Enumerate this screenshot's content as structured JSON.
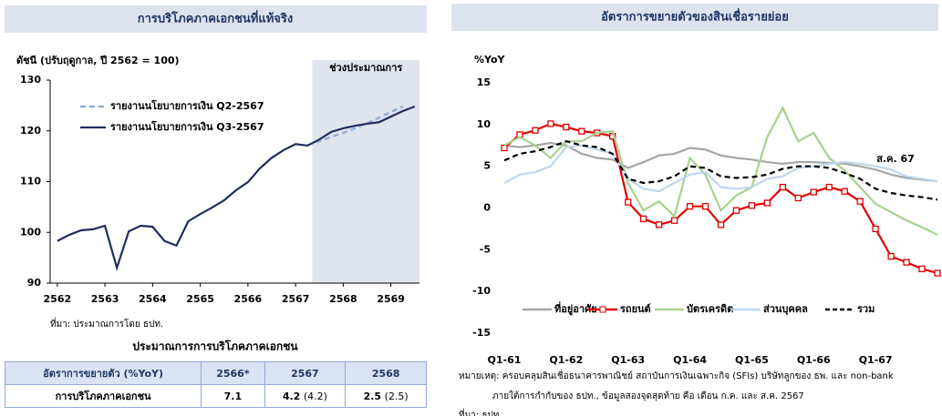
{
  "chart_data": [
    {
      "type": "line",
      "title": "การบริโภคภาคเอกชนที่แท้จริง",
      "y_label": "ดัชนี (ปรับฤดูกาล, ปี 2562 = 100)",
      "source": "ที่มา: ประมาณการโดย ธปท.",
      "x": [
        2562,
        2562.25,
        2562.5,
        2562.75,
        2563,
        2563.25,
        2563.5,
        2563.75,
        2564,
        2564.25,
        2564.5,
        2564.75,
        2565,
        2565.25,
        2565.5,
        2565.75,
        2566,
        2566.25,
        2566.5,
        2566.75,
        2567,
        2567.25,
        2567.5,
        2567.75,
        2568,
        2568.25,
        2568.5,
        2568.75,
        2569,
        2569.25,
        2569.5
      ],
      "xlim": [
        2561.85,
        2569.6
      ],
      "xticks": [
        2562,
        2563,
        2564,
        2565,
        2566,
        2567,
        2568,
        2569
      ],
      "ylim": [
        90,
        130
      ],
      "yticks": [
        90,
        100,
        110,
        120,
        130
      ],
      "shade": {
        "label": "ช่วงประมาณการ",
        "from": 2567.35,
        "to": 2569.6,
        "color": "#dfe4ee"
      },
      "legend": "upper left",
      "series": [
        {
          "name": "รายงานนโยบายการเงิน Q2-2567",
          "color": "#8eaadb",
          "dash": true,
          "values": [
            null,
            null,
            null,
            null,
            null,
            null,
            null,
            null,
            null,
            null,
            null,
            null,
            null,
            null,
            null,
            null,
            null,
            null,
            null,
            null,
            null,
            117.2,
            118.0,
            118.8,
            119.6,
            120.5,
            121.5,
            122.6,
            123.7,
            124.8,
            null
          ]
        },
        {
          "name": "รายงานนโยบายการเงิน Q3-2567",
          "color": "#1f2d5c",
          "dash": false,
          "values": [
            98.3,
            99.5,
            100.4,
            100.6,
            101.3,
            93.0,
            100.2,
            101.3,
            101.1,
            98.3,
            97.4,
            102.2,
            103.6,
            104.9,
            106.3,
            108.3,
            109.9,
            112.6,
            114.7,
            116.2,
            117.4,
            117.1,
            118.3,
            119.8,
            120.5,
            121.0,
            121.4,
            121.7,
            122.8,
            123.9,
            124.8
          ]
        }
      ]
    },
    {
      "type": "line",
      "title": "อัตราการขยายตัวของสินเชื่อรายย่อย",
      "y_label": "%YoY",
      "annotation": "ส.ค. 67",
      "categories": [
        "Q1-61",
        null,
        null,
        null,
        "Q1-62",
        null,
        null,
        null,
        "Q1-63",
        null,
        null,
        null,
        "Q1-64",
        null,
        null,
        null,
        "Q1-65",
        null,
        null,
        null,
        "Q1-66",
        null,
        null,
        null,
        "Q1-67",
        null,
        null,
        null,
        null
      ],
      "ylim": [
        -15,
        15
      ],
      "yticks": [
        -15,
        -10,
        -5,
        0,
        5,
        10,
        15
      ],
      "legend": "lower center",
      "series": [
        {
          "name": "ที่อยู่อาศัย",
          "color": "#a6a6a6",
          "dash": false,
          "values": [
            7.5,
            7.3,
            7.5,
            7.8,
            7.5,
            6.5,
            6.0,
            5.8,
            4.8,
            5.5,
            6.3,
            6.5,
            7.2,
            7.0,
            6.3,
            6.0,
            5.8,
            5.5,
            5.3,
            5.5,
            5.5,
            5.4,
            5.3,
            5.0,
            4.6,
            4.0,
            3.6,
            3.4,
            3.2
          ]
        },
        {
          "name": "รถยนต์",
          "color": "#e00000",
          "dash": false,
          "marker": "square",
          "values": [
            7.2,
            8.8,
            9.3,
            10.1,
            9.7,
            9.2,
            9.0,
            8.6,
            0.7,
            -1.3,
            -2.0,
            -1.5,
            0.2,
            0.2,
            -2.0,
            -0.3,
            0.3,
            0.6,
            2.5,
            1.2,
            1.9,
            2.5,
            2.0,
            0.8,
            -2.5,
            -5.8,
            -6.5,
            -7.3,
            -7.8
          ]
        },
        {
          "name": "บัตรเครดิต",
          "color": "#a9d18e",
          "dash": false,
          "values": [
            7.5,
            8.5,
            7.5,
            6.0,
            8.0,
            8.0,
            9.0,
            9.2,
            3.0,
            -0.3,
            0.8,
            -1.0,
            6.0,
            4.0,
            -0.3,
            1.5,
            2.5,
            8.5,
            12.0,
            8.0,
            9.0,
            6.0,
            4.5,
            2.5,
            0.5,
            -0.5,
            -1.5,
            -2.3,
            -3.2
          ]
        },
        {
          "name": "ส่วนบุคคล",
          "color": "#bdd7ee",
          "dash": false,
          "values": [
            3.0,
            4.0,
            4.3,
            5.0,
            7.3,
            7.5,
            7.0,
            6.5,
            3.5,
            2.3,
            2.0,
            3.0,
            4.0,
            4.3,
            2.5,
            2.3,
            2.5,
            3.5,
            3.8,
            4.8,
            5.0,
            5.3,
            5.5,
            5.3,
            5.0,
            4.6,
            3.8,
            3.5,
            3.2
          ]
        },
        {
          "name": "รวม",
          "color": "#000000",
          "dash": true,
          "values": [
            5.7,
            6.5,
            6.8,
            7.3,
            8.0,
            7.5,
            7.3,
            6.5,
            3.5,
            3.0,
            3.2,
            3.8,
            5.0,
            4.8,
            3.8,
            3.6,
            3.7,
            4.0,
            4.7,
            5.0,
            5.0,
            4.8,
            4.2,
            3.5,
            2.3,
            1.8,
            1.5,
            1.3,
            1.0
          ]
        }
      ],
      "notes": [
        "หมายเหตุ: ครอบคลุมสินเชื่อธนาคารพาณิชย์ สถาบันการเงินเฉพาะกิจ (SFIs) บริษัทลูกของ ธพ. และ non-bank",
        "ภายใต้การกำกับของ ธปท., ข้อมูลสองจุดสุดท้าย คือ เดือน ก.ค. และ ส.ค. 2567",
        "ที่มา: ธปท."
      ]
    }
  ],
  "table": {
    "title": "ประมาณการการบริโภคภาคเอกชน",
    "header": [
      "อัตราการขยายตัว (%YoY)",
      "2566*",
      "2567",
      "2568"
    ],
    "rows": [
      [
        "การบริโภคภาคเอกชน",
        "7.1",
        [
          "4.2",
          "(4.2)"
        ],
        [
          "2.5",
          "(2.5)"
        ]
      ]
    ]
  }
}
